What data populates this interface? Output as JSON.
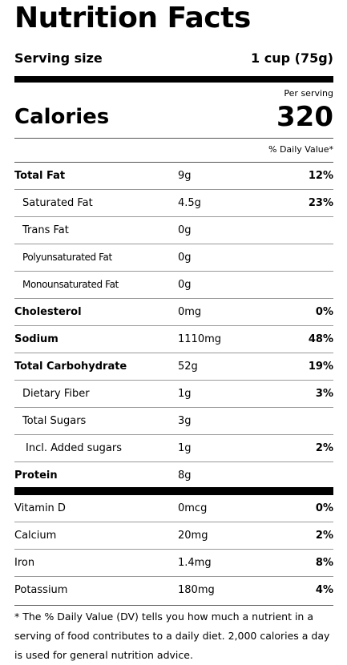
{
  "title": "Nutrition Facts",
  "serving": {
    "label": "Serving size",
    "value": "1 cup (75g)"
  },
  "calories": {
    "per_serving": "Per serving",
    "label": "Calories",
    "value": "320"
  },
  "daily_value_header": "% Daily Value*",
  "nutrients": [
    {
      "name": "Total Fat",
      "amount": "9g",
      "dv": "12%"
    },
    {
      "name": "Saturated Fat",
      "amount": "4.5g",
      "dv": "23%"
    },
    {
      "name": "Trans Fat",
      "amount": "0g"
    },
    {
      "name": "Polyunsaturated Fat",
      "amount": "0g"
    },
    {
      "name": "Monounsaturated Fat",
      "amount": "0g"
    },
    {
      "name": "Cholesterol",
      "amount": "0mg",
      "dv": "0%"
    },
    {
      "name": "Sodium",
      "amount": "1110mg",
      "dv": "48%"
    },
    {
      "name": "Total Carbohydrate",
      "amount": "52g",
      "dv": "19%"
    },
    {
      "name": "Dietary Fiber",
      "amount": "1g",
      "dv": "3%"
    },
    {
      "name": "Total Sugars",
      "amount": "3g"
    },
    {
      "name": "Incl. Added sugars",
      "amount": "1g",
      "dv": "2%"
    },
    {
      "name": "Protein",
      "amount": "8g"
    }
  ],
  "vitamins": [
    {
      "name": "Vitamin D",
      "amount": "0mcg",
      "dv": "0%"
    },
    {
      "name": "Calcium",
      "amount": "20mg",
      "dv": "2%"
    },
    {
      "name": "Iron",
      "amount": "1.4mg",
      "dv": "8%"
    },
    {
      "name": "Potassium",
      "amount": "180mg",
      "dv": "4%"
    }
  ],
  "footnote": "* The % Daily Value (DV) tells you how much a nutrient in a serving of food contributes to a daily diet. 2,000 calories a day is used for general nutrition advice."
}
